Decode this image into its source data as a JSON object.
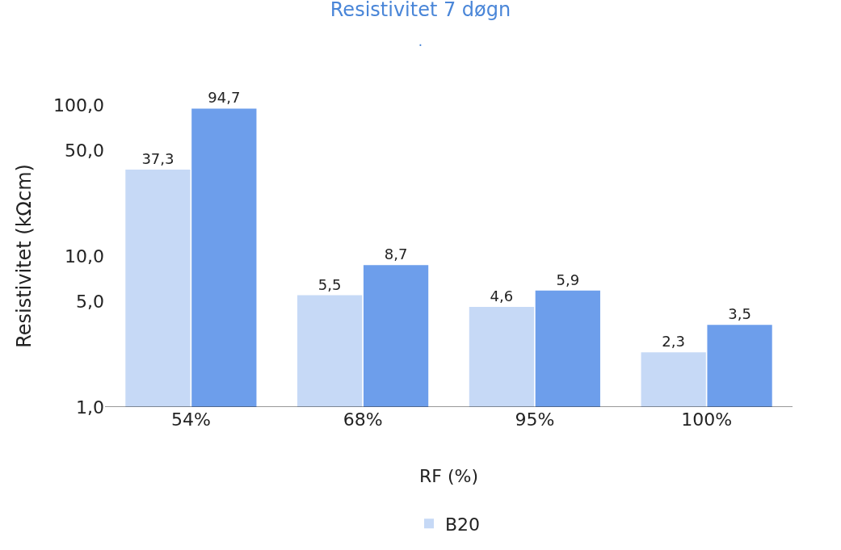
{
  "chart_data": {
    "type": "bar",
    "title": "Resistivitet 7 døgn",
    "subtitle": ".",
    "xlabel": "RF (%)",
    "ylabel": "Resistivitet (kΩcm)",
    "categories": [
      "54%",
      "68%",
      "95%",
      "100%"
    ],
    "series": [
      {
        "name": "B20",
        "color": "#c6d9f6",
        "values": [
          37.3,
          5.5,
          4.6,
          2.3
        ],
        "value_labels": [
          "37,3",
          "5,5",
          "4,6",
          "2,3"
        ]
      },
      {
        "color": "#6d9eeb",
        "values": [
          94.7,
          8.7,
          5.9,
          3.5
        ],
        "value_labels": [
          "94,7",
          "8,7",
          "5,9",
          "3,5"
        ]
      }
    ],
    "log": "y",
    "ylim": [
      1,
      100
    ],
    "yticks": [
      {
        "value": 1,
        "label": "1,0"
      },
      {
        "value": 5,
        "label": "5,0"
      },
      {
        "value": 10,
        "label": "10,0"
      },
      {
        "value": 50,
        "label": "50,0"
      },
      {
        "value": 100,
        "label": "100,0"
      }
    ],
    "legend": "bottom"
  }
}
